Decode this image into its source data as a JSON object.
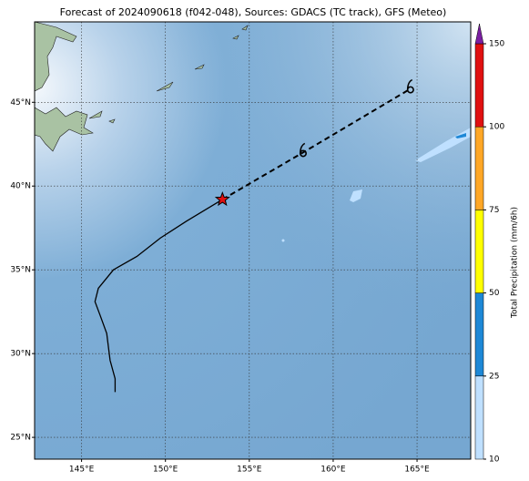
{
  "chart_data": {
    "type": "map",
    "title": "Forecast of 2024090618 (f042-048), Sources: GDACS (TC track), GFS (Meteo)",
    "xlim": [
      142.2,
      168.2
    ],
    "ylim": [
      23.7,
      49.8
    ],
    "xticks": [
      {
        "value": 145,
        "label": "145°E"
      },
      {
        "value": 150,
        "label": "150°E"
      },
      {
        "value": 155,
        "label": "155°E"
      },
      {
        "value": 160,
        "label": "160°E"
      },
      {
        "value": 165,
        "label": "165°E"
      }
    ],
    "yticks": [
      {
        "value": 25,
        "label": "25°N"
      },
      {
        "value": 30,
        "label": "30°N"
      },
      {
        "value": 35,
        "label": "35°N"
      },
      {
        "value": 40,
        "label": "40°N"
      },
      {
        "value": 45,
        "label": "45°N"
      }
    ],
    "grid": true,
    "tracks": [
      {
        "style": "solid",
        "color": "#000000",
        "x": [
          147.0,
          147.0,
          146.7,
          146.5,
          146.1,
          145.8,
          146.0,
          146.9,
          148.3,
          149.7,
          151.25,
          153.4
        ],
        "y": [
          27.7,
          28.5,
          29.6,
          31.2,
          32.3,
          33.1,
          33.9,
          35.0,
          35.8,
          36.9,
          37.9,
          39.2
        ]
      },
      {
        "style": "dashed",
        "color": "#000000",
        "x": [
          153.4,
          158.2,
          164.6
        ],
        "y": [
          39.2,
          42.0,
          45.8
        ]
      }
    ],
    "colorbar": {
      "label": "Total Precipitation (mm/6h)",
      "ticks": [
        10,
        25,
        50,
        75,
        100,
        150
      ],
      "colors": [
        "#bfe0ff",
        "#1e88d6",
        "#ffff00",
        "#ffa726",
        "#e01010"
      ],
      "extend_color": "#7b1fa2"
    }
  }
}
